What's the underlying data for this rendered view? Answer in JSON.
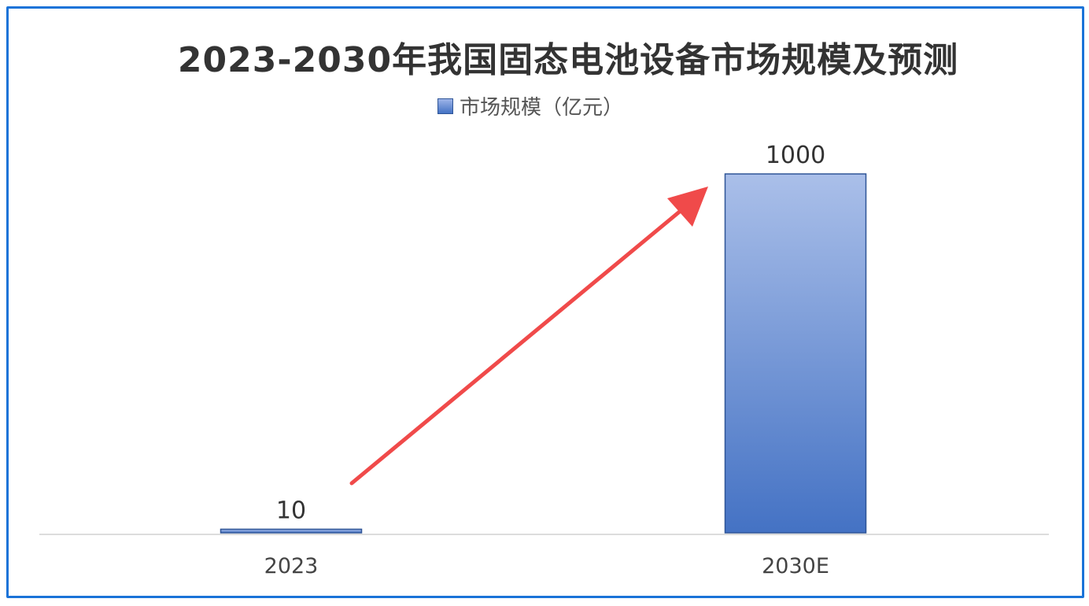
{
  "chart_data": {
    "type": "bar",
    "title": "2023-2030年我国固态电池设备市场规模及预测",
    "categories": [
      "2023",
      "2030E"
    ],
    "series": [
      {
        "name": "市场规模（亿元）",
        "values": [
          10,
          1000
        ]
      }
    ],
    "data_labels": [
      "10",
      "1000"
    ],
    "ylim": [
      0,
      1000
    ],
    "grid": false,
    "legend": "top",
    "annotations": [
      {
        "type": "arrow",
        "from": "2023",
        "to": "2030E",
        "color": "#f04a4a"
      }
    ],
    "colors": {
      "bar_top": "#aabfe9",
      "bar_bottom": "#4472c4",
      "bar_border": "#2f5597",
      "frame": "#1a73d8",
      "arrow": "#f04a4a"
    }
  }
}
